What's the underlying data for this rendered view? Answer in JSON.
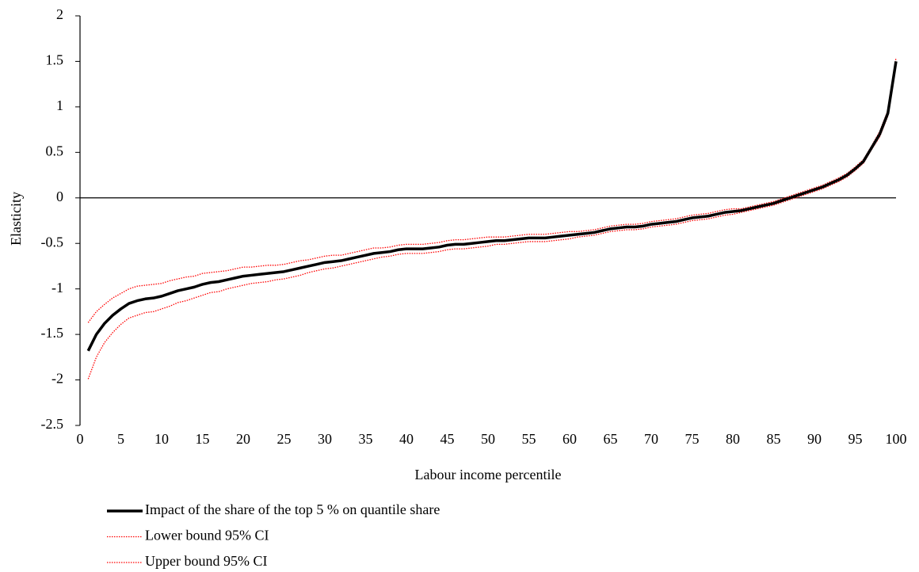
{
  "chart_data": {
    "type": "line",
    "x_label": "Labour income percentile",
    "y_label": "Elasticity",
    "x": [
      1,
      2,
      3,
      4,
      5,
      6,
      7,
      8,
      9,
      10,
      11,
      12,
      13,
      14,
      15,
      16,
      17,
      18,
      19,
      20,
      21,
      22,
      23,
      24,
      25,
      26,
      27,
      28,
      29,
      30,
      31,
      32,
      33,
      34,
      35,
      36,
      37,
      38,
      39,
      40,
      41,
      42,
      43,
      44,
      45,
      46,
      47,
      48,
      49,
      50,
      51,
      52,
      53,
      54,
      55,
      56,
      57,
      58,
      59,
      60,
      61,
      62,
      63,
      64,
      65,
      66,
      67,
      68,
      69,
      70,
      71,
      72,
      73,
      74,
      75,
      76,
      77,
      78,
      79,
      80,
      81,
      82,
      83,
      84,
      85,
      86,
      87,
      88,
      89,
      90,
      91,
      92,
      93,
      94,
      95,
      96,
      97,
      98,
      99,
      100
    ],
    "series": [
      {
        "name": "Impact of the share of the top 5 % on quantile share",
        "color": "#000000",
        "style": "solid",
        "values": [
          -1.68,
          -1.5,
          -1.38,
          -1.29,
          -1.22,
          -1.16,
          -1.13,
          -1.11,
          -1.1,
          -1.08,
          -1.05,
          -1.02,
          -1.0,
          -0.98,
          -0.95,
          -0.93,
          -0.92,
          -0.9,
          -0.88,
          -0.86,
          -0.85,
          -0.84,
          -0.83,
          -0.82,
          -0.81,
          -0.79,
          -0.77,
          -0.75,
          -0.73,
          -0.71,
          -0.7,
          -0.69,
          -0.67,
          -0.65,
          -0.63,
          -0.61,
          -0.6,
          -0.59,
          -0.57,
          -0.56,
          -0.56,
          -0.56,
          -0.55,
          -0.54,
          -0.52,
          -0.51,
          -0.51,
          -0.5,
          -0.49,
          -0.48,
          -0.47,
          -0.47,
          -0.46,
          -0.45,
          -0.44,
          -0.44,
          -0.44,
          -0.43,
          -0.42,
          -0.41,
          -0.4,
          -0.39,
          -0.38,
          -0.36,
          -0.34,
          -0.33,
          -0.32,
          -0.32,
          -0.31,
          -0.29,
          -0.28,
          -0.27,
          -0.26,
          -0.24,
          -0.22,
          -0.21,
          -0.2,
          -0.18,
          -0.16,
          -0.15,
          -0.14,
          -0.12,
          -0.1,
          -0.08,
          -0.06,
          -0.03,
          0.0,
          0.03,
          0.06,
          0.09,
          0.12,
          0.16,
          0.2,
          0.25,
          0.32,
          0.4,
          0.55,
          0.7,
          0.93,
          1.5
        ]
      },
      {
        "name": "Lower bound 95% CI",
        "color": "#ff0000",
        "style": "dotted",
        "values": [
          -1.99,
          -1.75,
          -1.59,
          -1.48,
          -1.39,
          -1.32,
          -1.29,
          -1.26,
          -1.25,
          -1.22,
          -1.19,
          -1.15,
          -1.13,
          -1.1,
          -1.07,
          -1.04,
          -1.03,
          -1.0,
          -0.98,
          -0.96,
          -0.94,
          -0.93,
          -0.92,
          -0.9,
          -0.89,
          -0.87,
          -0.85,
          -0.82,
          -0.8,
          -0.78,
          -0.77,
          -0.75,
          -0.73,
          -0.71,
          -0.69,
          -0.67,
          -0.65,
          -0.64,
          -0.62,
          -0.61,
          -0.61,
          -0.61,
          -0.6,
          -0.59,
          -0.57,
          -0.56,
          -0.56,
          -0.55,
          -0.54,
          -0.53,
          -0.51,
          -0.51,
          -0.5,
          -0.49,
          -0.48,
          -0.48,
          -0.48,
          -0.47,
          -0.46,
          -0.45,
          -0.43,
          -0.42,
          -0.41,
          -0.39,
          -0.37,
          -0.36,
          -0.35,
          -0.35,
          -0.34,
          -0.32,
          -0.31,
          -0.3,
          -0.29,
          -0.27,
          -0.25,
          -0.24,
          -0.23,
          -0.21,
          -0.19,
          -0.18,
          -0.16,
          -0.14,
          -0.12,
          -0.1,
          -0.08,
          -0.05,
          -0.02,
          0.01,
          0.04,
          0.07,
          0.1,
          0.14,
          0.18,
          0.23,
          0.3,
          0.38,
          0.53,
          0.67,
          0.9,
          1.46
        ]
      },
      {
        "name": "Upper bound 95% CI",
        "color": "#ff0000",
        "style": "dotted",
        "values": [
          -1.37,
          -1.25,
          -1.17,
          -1.1,
          -1.05,
          -1.0,
          -0.97,
          -0.96,
          -0.95,
          -0.94,
          -0.91,
          -0.89,
          -0.87,
          -0.86,
          -0.83,
          -0.82,
          -0.81,
          -0.8,
          -0.78,
          -0.76,
          -0.76,
          -0.75,
          -0.74,
          -0.74,
          -0.73,
          -0.71,
          -0.69,
          -0.68,
          -0.66,
          -0.64,
          -0.63,
          -0.63,
          -0.61,
          -0.59,
          -0.57,
          -0.55,
          -0.55,
          -0.54,
          -0.52,
          -0.51,
          -0.51,
          -0.51,
          -0.5,
          -0.49,
          -0.47,
          -0.46,
          -0.46,
          -0.45,
          -0.44,
          -0.43,
          -0.43,
          -0.43,
          -0.42,
          -0.41,
          -0.4,
          -0.4,
          -0.4,
          -0.39,
          -0.38,
          -0.37,
          -0.37,
          -0.36,
          -0.35,
          -0.33,
          -0.31,
          -0.3,
          -0.29,
          -0.29,
          -0.28,
          -0.26,
          -0.25,
          -0.24,
          -0.23,
          -0.21,
          -0.19,
          -0.18,
          -0.17,
          -0.15,
          -0.13,
          -0.12,
          -0.12,
          -0.1,
          -0.08,
          -0.06,
          -0.04,
          -0.01,
          0.02,
          0.05,
          0.08,
          0.11,
          0.14,
          0.18,
          0.22,
          0.27,
          0.34,
          0.42,
          0.57,
          0.73,
          0.96,
          1.54
        ]
      }
    ],
    "xlim": [
      0,
      100
    ],
    "xticks": [
      0,
      5,
      10,
      15,
      20,
      25,
      30,
      35,
      40,
      45,
      50,
      55,
      60,
      65,
      70,
      75,
      80,
      85,
      90,
      95,
      100
    ],
    "ylim": [
      -2.5,
      2
    ],
    "yticks": [
      -2.5,
      -2,
      -1.5,
      -1,
      -0.5,
      0,
      0.5,
      1,
      1.5,
      2
    ],
    "grid": false,
    "legend": "bottom-left"
  }
}
